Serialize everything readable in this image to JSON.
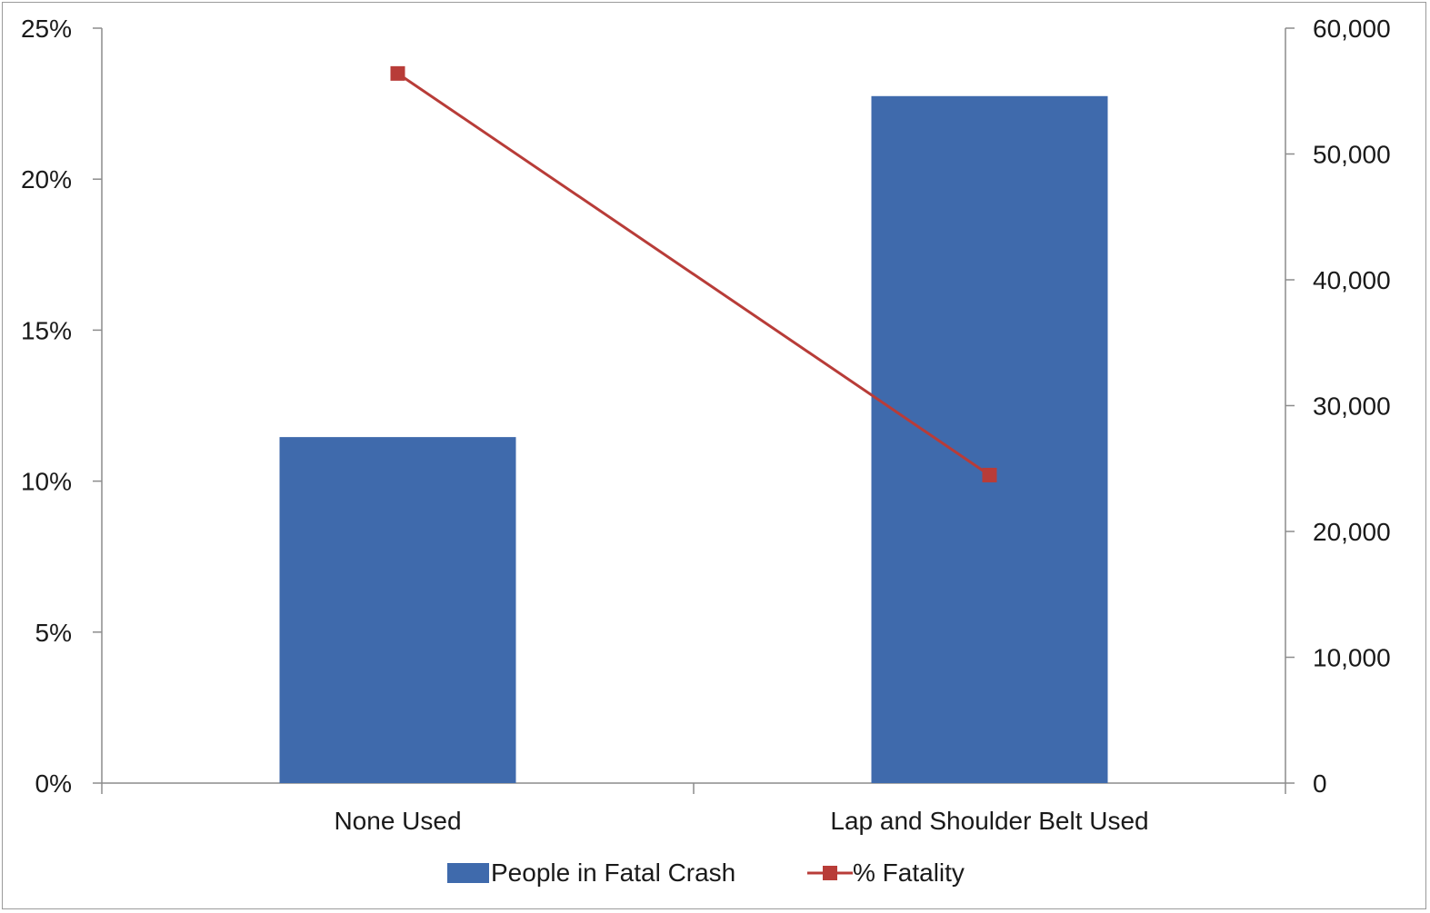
{
  "chart_data": {
    "type": "bar",
    "categories": [
      "None Used",
      "Lap and Shoulder Belt Used"
    ],
    "series": [
      {
        "name": "People in Fatal Crash",
        "type": "bar",
        "axis": "right",
        "color": "#3f6aac",
        "values": [
          27500,
          54600
        ]
      },
      {
        "name": "% Fatality",
        "type": "line",
        "axis": "left",
        "color": "#b83c38",
        "values": [
          0.235,
          0.102
        ]
      }
    ],
    "y_left": {
      "ylim": [
        0,
        0.25
      ],
      "ticks": [
        0,
        0.05,
        0.1,
        0.15,
        0.2,
        0.25
      ],
      "tick_labels": [
        "0%",
        "5%",
        "10%",
        "15%",
        "20%",
        "25%"
      ]
    },
    "y_right": {
      "ylim": [
        0,
        60000
      ],
      "ticks": [
        0,
        10000,
        20000,
        30000,
        40000,
        50000,
        60000
      ],
      "tick_labels": [
        "0",
        "10,000",
        "20,000",
        "30,000",
        "40,000",
        "50,000",
        "60,000"
      ]
    },
    "grid": false,
    "legend_position": "bottom",
    "title": "",
    "xlabel": "",
    "ylabel": ""
  }
}
